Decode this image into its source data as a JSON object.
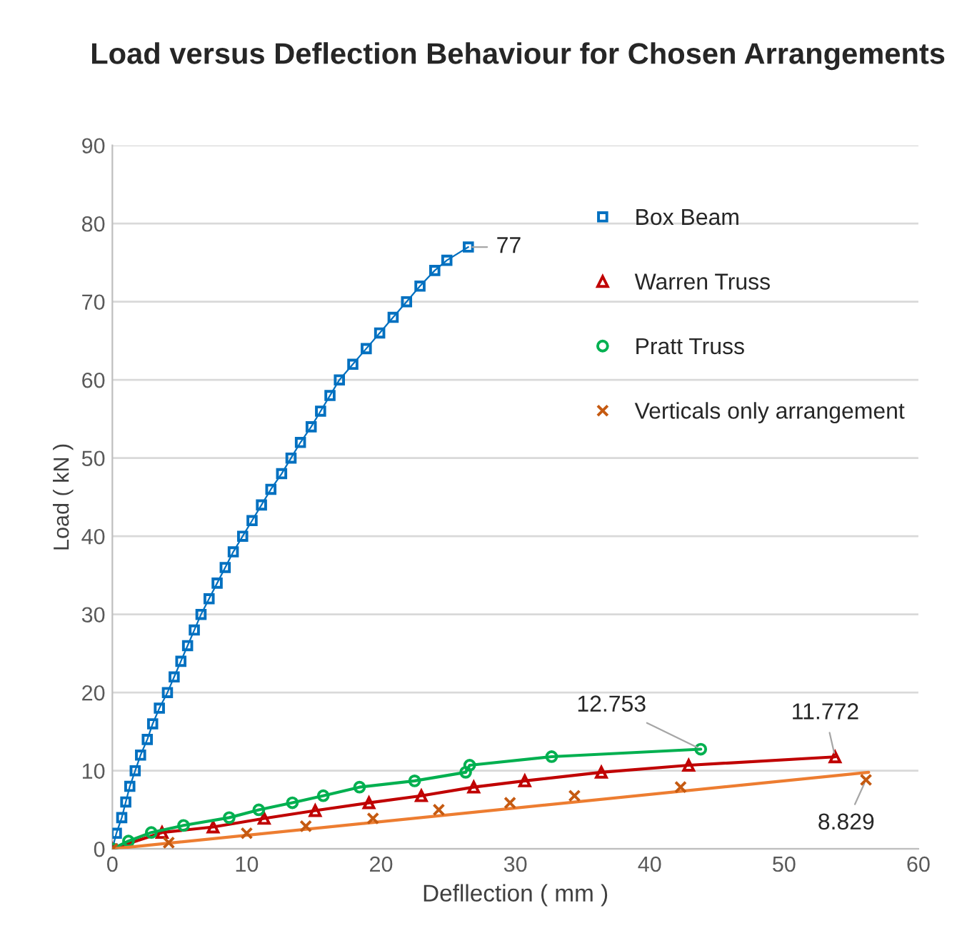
{
  "chart_data": {
    "type": "line",
    "title": "Load versus Deflection Behaviour for Chosen Arrangements",
    "xlabel": "Defllection ( mm )",
    "ylabel": "Load ( kN )",
    "xlim": [
      0,
      60
    ],
    "xticks": [
      0,
      10,
      20,
      30,
      40,
      50,
      60
    ],
    "ylim": [
      0,
      90
    ],
    "yticks": [
      0,
      10,
      20,
      30,
      40,
      50,
      60,
      70,
      80,
      90
    ],
    "grid": "y",
    "legend": "right",
    "series": [
      {
        "name": "Box Beam",
        "marker": "square",
        "color": "#0070c0",
        "x": [
          0,
          0.3,
          0.7,
          1.0,
          1.3,
          1.7,
          2.1,
          2.6,
          3.0,
          3.5,
          4.1,
          4.6,
          5.1,
          5.6,
          6.1,
          6.6,
          7.2,
          7.8,
          8.4,
          9.0,
          9.7,
          10.4,
          11.1,
          11.8,
          12.6,
          13.3,
          14.0,
          14.8,
          15.5,
          16.2,
          16.9,
          17.9,
          18.9,
          19.9,
          20.9,
          21.9,
          22.9,
          24.0,
          24.9,
          26.5
        ],
        "values": [
          0,
          2,
          4,
          6,
          8,
          10,
          12,
          14,
          16,
          18,
          20,
          22,
          24,
          26,
          28,
          30,
          32,
          34,
          36,
          38,
          40,
          42,
          44,
          46,
          48,
          50,
          52,
          54,
          56,
          58,
          60,
          62,
          64,
          66,
          68,
          70,
          72,
          74,
          75.3,
          77
        ]
      },
      {
        "name": "Warren Truss",
        "marker": "triangle",
        "color": "#c00000",
        "x": [
          0,
          3.7,
          7.5,
          11.3,
          15.1,
          19.1,
          23.0,
          26.9,
          30.7,
          36.4,
          42.9,
          53.8
        ],
        "values": [
          0,
          2.1,
          2.8,
          3.9,
          4.9,
          5.9,
          6.8,
          7.9,
          8.7,
          9.8,
          10.7,
          11.772
        ]
      },
      {
        "name": "Pratt Truss",
        "marker": "circle",
        "color": "#00b050",
        "x": [
          0,
          1.2,
          2.9,
          5.3,
          8.7,
          10.9,
          13.4,
          15.7,
          18.4,
          22.5,
          26.3,
          26.6,
          32.7,
          43.8
        ],
        "values": [
          0,
          1.0,
          2.1,
          3.0,
          4.0,
          5.0,
          5.9,
          6.8,
          7.9,
          8.7,
          9.8,
          10.7,
          11.8,
          12.753
        ]
      },
      {
        "name": "Verticals only arrangement",
        "type": "scatter",
        "marker": "cross",
        "color": "#c55a11",
        "x": [
          0,
          4.2,
          10.0,
          14.4,
          19.4,
          24.3,
          29.6,
          34.4,
          42.3,
          56.1
        ],
        "values": [
          0,
          0.8,
          2.0,
          2.9,
          3.9,
          5.0,
          5.9,
          6.8,
          7.9,
          8.829
        ]
      },
      {
        "marker": "none",
        "color": "#ed7d31",
        "x": [
          0,
          56.3
        ],
        "values": [
          0,
          9.8
        ]
      }
    ],
    "annotations": [
      {
        "text": "77",
        "x": 26.5,
        "y": 77
      },
      {
        "text": "12.753",
        "x": 43.8,
        "y": 12.753
      },
      {
        "text": "11.772",
        "x": 53.8,
        "y": 11.772
      },
      {
        "text": "8.829",
        "x": 56.1,
        "y": 8.829
      }
    ]
  }
}
